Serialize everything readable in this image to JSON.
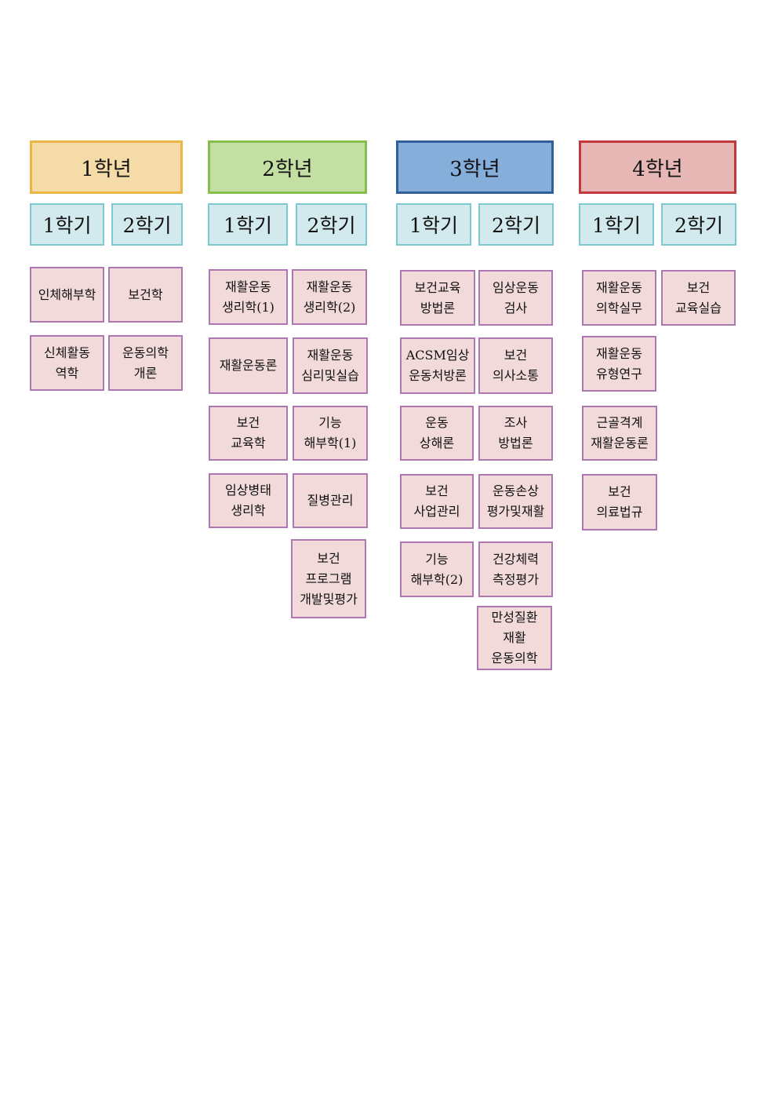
{
  "years": [
    {
      "label": "1학년",
      "fill": "#f5dba8",
      "border": "#ebb547",
      "semesters": [
        {
          "label": "1학기",
          "courses": [
            [
              "인체해부학"
            ],
            [
              "신체활동",
              "역학"
            ]
          ]
        },
        {
          "label": "2학기",
          "courses": [
            [
              "보건학"
            ],
            [
              "운동의학",
              "개론"
            ]
          ]
        }
      ]
    },
    {
      "label": "2학년",
      "fill": "#c4dfa3",
      "border": "#86c04c",
      "semesters": [
        {
          "label": "1학기",
          "courses": [
            [
              "재활운동",
              "생리학(1)"
            ],
            [
              "재활운동론"
            ],
            [
              "보건",
              "교육학"
            ],
            [
              "임상병태",
              "생리학"
            ]
          ]
        },
        {
          "label": "2학기",
          "courses": [
            [
              "재활운동",
              "생리학(2)"
            ],
            [
              "재활운동",
              "심리및실습"
            ],
            [
              "기능",
              "해부학(1)"
            ],
            [
              "질병관리"
            ],
            [
              "보건",
              "프로그램",
              "개발및평가"
            ]
          ]
        }
      ]
    },
    {
      "label": "3학년",
      "fill": "#86aedb",
      "border": "#2f609c",
      "semesters": [
        {
          "label": "1학기",
          "courses": [
            [
              "보건교육",
              "방법론"
            ],
            [
              "ACSM임상",
              "운동처방론"
            ],
            [
              "운동",
              "상해론"
            ],
            [
              "보건",
              "사업관리"
            ],
            [
              "기능",
              "해부학(2)"
            ]
          ]
        },
        {
          "label": "2학기",
          "courses": [
            [
              "임상운동",
              "검사"
            ],
            [
              "보건",
              "의사소통"
            ],
            [
              "조사",
              "방법론"
            ],
            [
              "운동손상",
              "평가및재활"
            ],
            [
              "건강체력",
              "측정평가"
            ],
            [
              "만성질환",
              "재활",
              "운동의학"
            ]
          ]
        }
      ]
    },
    {
      "label": "4학년",
      "fill": "#e7b7b6",
      "border": "#c0393b",
      "semesters": [
        {
          "label": "1학기",
          "courses": [
            [
              "재활운동",
              "의학실무"
            ],
            [
              "재활운동",
              "유형연구"
            ],
            [
              "근골격계",
              "재활운동론"
            ],
            [
              "보건",
              "의료법규"
            ]
          ]
        },
        {
          "label": "2학기",
          "courses": [
            [
              "보건",
              "교육실습"
            ]
          ]
        }
      ]
    }
  ]
}
